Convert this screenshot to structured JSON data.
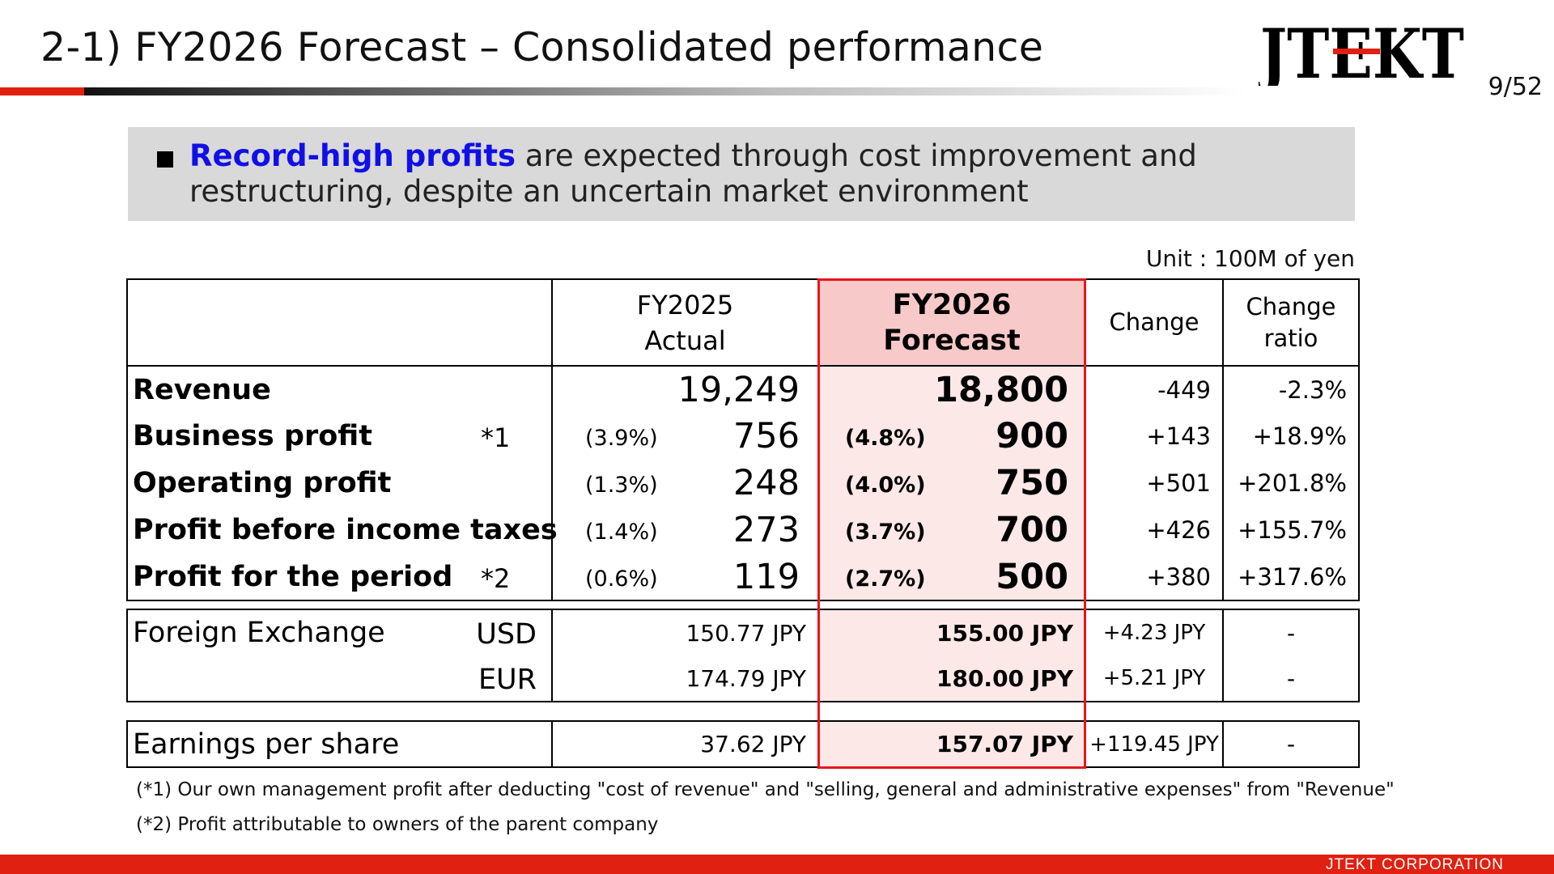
{
  "page": {
    "title": "2-1) FY2026 Forecast – Consolidated performance",
    "page_number": "9/52",
    "logo_text": "JTEKT",
    "footer": "JTEKT  CORPORATION",
    "brand_color": "#e02010"
  },
  "summary": {
    "highlight": "Record-high profits",
    "rest": " are expected through cost improvement and restructuring, despite an uncertain market environment"
  },
  "unit_note": "Unit : 100M of yen",
  "table": {
    "headers": {
      "actual_line1": "FY2025",
      "actual_line2": "Actual",
      "forecast_line1": "FY2026",
      "forecast_line2": "Forecast",
      "change": "Change",
      "ratio_line1": "Change",
      "ratio_line2": "ratio"
    },
    "rows": [
      {
        "label": "Revenue",
        "note": "",
        "actual_pct": "",
        "actual": "19,249",
        "forecast_pct": "",
        "forecast": "18,800",
        "change": "-449",
        "ratio": "-2.3%"
      },
      {
        "label": "Business profit",
        "note": "*1",
        "actual_pct": "(3.9%)",
        "actual": "756",
        "forecast_pct": "(4.8%)",
        "forecast": "900",
        "change": "+143",
        "ratio": "+18.9%"
      },
      {
        "label": "Operating profit",
        "note": "",
        "actual_pct": "(1.3%)",
        "actual": "248",
        "forecast_pct": "(4.0%)",
        "forecast": "750",
        "change": "+501",
        "ratio": "+201.8%"
      },
      {
        "label": "Profit before income taxes",
        "note": "",
        "actual_pct": "(1.4%)",
        "actual": "273",
        "forecast_pct": "(3.7%)",
        "forecast": "700",
        "change": "+426",
        "ratio": "+155.7%"
      },
      {
        "label": "Profit for the period",
        "note": "*2",
        "actual_pct": "(0.6%)",
        "actual": "119",
        "forecast_pct": "(2.7%)",
        "forecast": "500",
        "change": "+380",
        "ratio": "+317.6%"
      }
    ],
    "fx": {
      "label": "Foreign Exchange",
      "rows": [
        {
          "currency": "USD",
          "actual": "150.77 JPY",
          "forecast": "155.00 JPY",
          "change": "+4.23 JPY",
          "ratio": "-"
        },
        {
          "currency": "EUR",
          "actual": "174.79 JPY",
          "forecast": "180.00 JPY",
          "change": "+5.21 JPY",
          "ratio": "-"
        }
      ]
    },
    "eps": {
      "label": "Earnings per share",
      "actual": "37.62 JPY",
      "forecast": "157.07 JPY",
      "change": "+119.45 JPY",
      "ratio": "-"
    }
  },
  "footnotes": [
    "(*1) Our own management profit after deducting \"cost of revenue\" and \"selling, general and administrative expenses\" from \"Revenue\"",
    "(*2) Profit attributable to owners of the parent company"
  ]
}
